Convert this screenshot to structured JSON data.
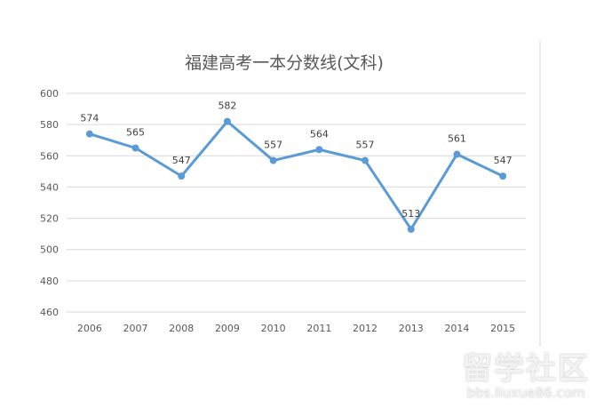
{
  "chart_data": {
    "type": "line",
    "title": "福建高考一本分数线(文科)",
    "categories": [
      "2006",
      "2007",
      "2008",
      "2009",
      "2010",
      "2011",
      "2012",
      "2013",
      "2014",
      "2015"
    ],
    "values": [
      574,
      565,
      547,
      582,
      557,
      564,
      557,
      513,
      561,
      547
    ],
    "yticks": [
      460,
      480,
      500,
      520,
      540,
      560,
      580,
      600
    ],
    "ylim": [
      460,
      600
    ],
    "grid": true,
    "data_labels": true,
    "color": "#5b9bd5"
  },
  "watermark": {
    "line1": "留学社区",
    "line2": "bbs.liuxue86.com"
  }
}
